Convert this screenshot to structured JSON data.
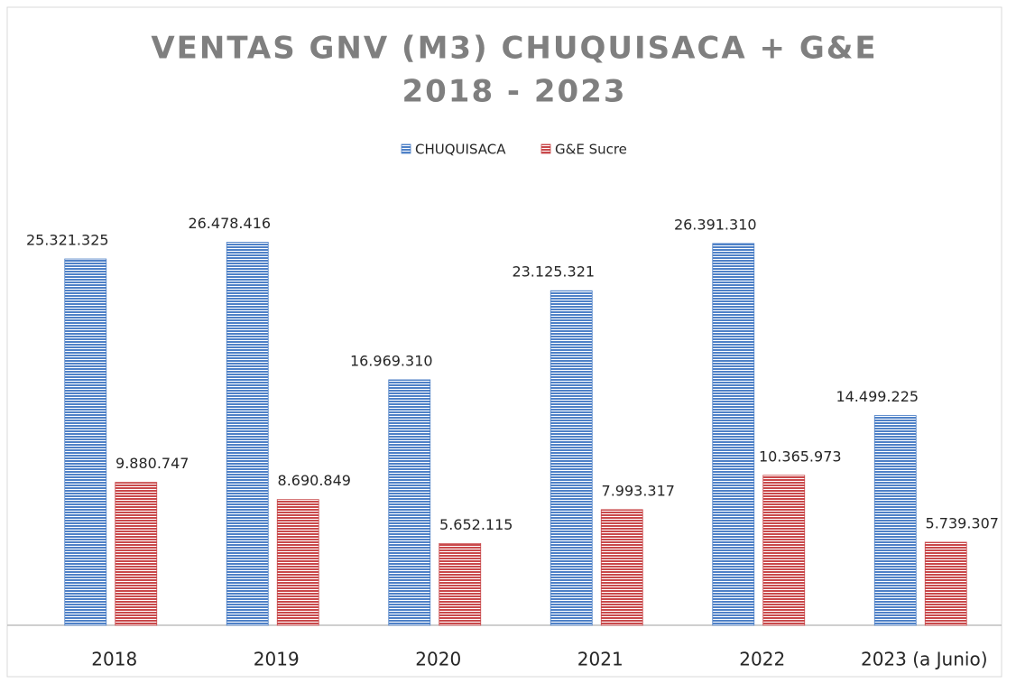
{
  "chart_data": {
    "type": "bar",
    "title": [
      "VENTAS GNV (M3) CHUQUISACA + G&E",
      "2018 - 2023"
    ],
    "categories": [
      "2018",
      "2019",
      "2020",
      "2021",
      "2022",
      "2023 (a Junio)"
    ],
    "series": [
      {
        "name": "CHUQUISACA",
        "color": "#4f81c7",
        "values": [
          25321325,
          26478416,
          16969310,
          23125321,
          26391310,
          14499225
        ],
        "value_labels": [
          "25.321.325",
          "26.478.416",
          "16.969.310",
          "23.125.321",
          "26.391.310",
          "14.499.225"
        ]
      },
      {
        "name": "G&E Sucre",
        "color": "#c9494b",
        "values": [
          9880747,
          8690849,
          5652115,
          7993317,
          10365973,
          5739307
        ],
        "value_labels": [
          "9.880.747",
          "8.690.849",
          "5.652.115",
          "7.993.317",
          "10.365.973",
          "5.739.307"
        ]
      }
    ],
    "ylim": [
      0,
      30000000
    ],
    "legend": "top"
  }
}
